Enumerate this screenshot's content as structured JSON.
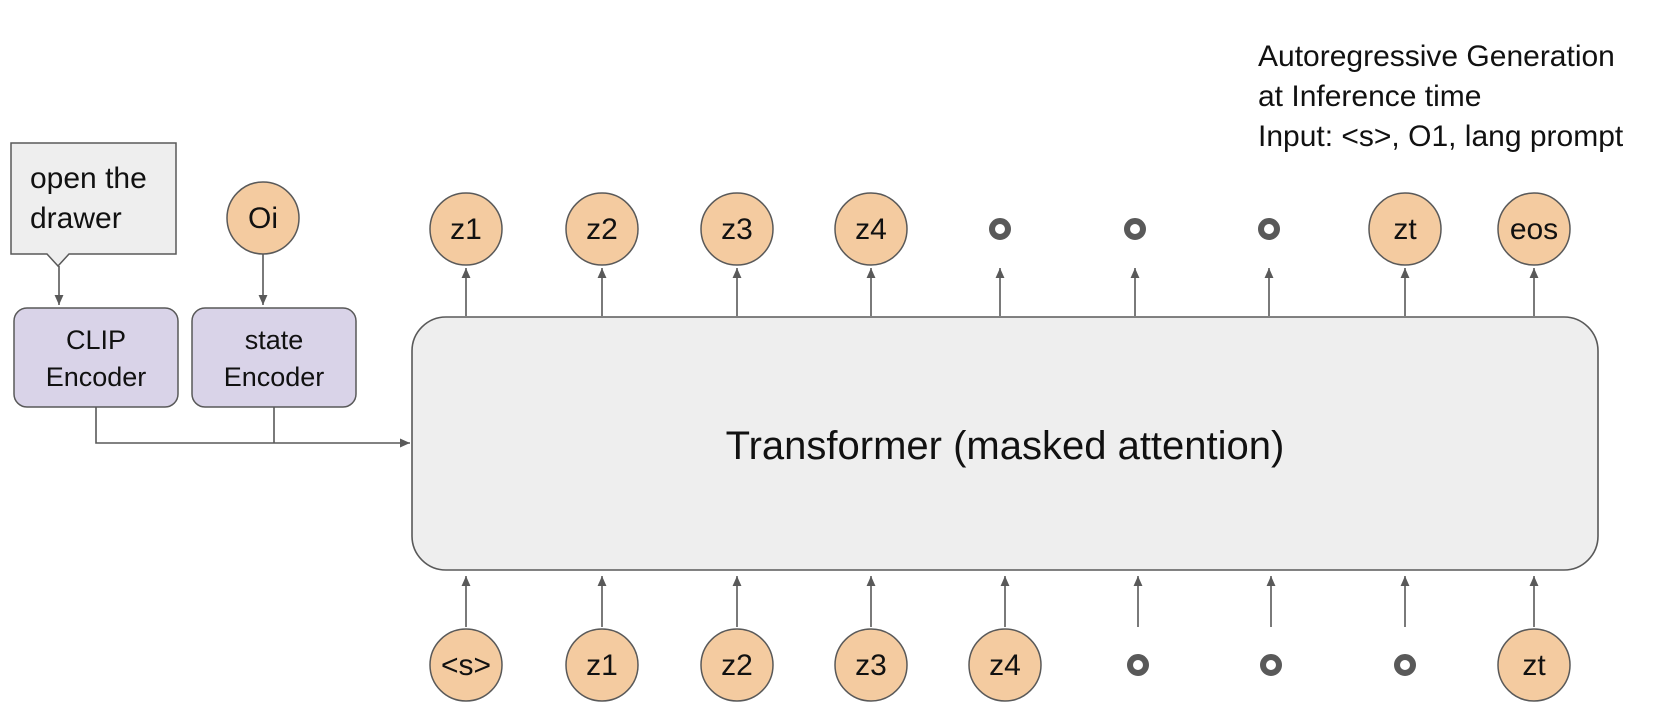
{
  "caption": {
    "lines": [
      "Autoregressive Generation",
      "at Inference time",
      "Input: <s>, O1, lang prompt"
    ]
  },
  "callout": {
    "lines": [
      "open the",
      "drawer"
    ]
  },
  "state_token": "Oi",
  "encoders": {
    "clip": [
      "CLIP",
      "Encoder"
    ],
    "state": [
      "state",
      "Encoder"
    ]
  },
  "transformer_label": "Transformer (masked attention)",
  "output_tokens": [
    "z1",
    "z2",
    "z3",
    "z4",
    "",
    "",
    "",
    "zt",
    "eos"
  ],
  "input_tokens": [
    "<s>",
    "z1",
    "z2",
    "z3",
    "z4",
    "",
    "",
    "",
    "zt"
  ],
  "colors": {
    "token_fill": "#f4cba0",
    "encoder_fill": "#d9d3e8",
    "transformer_fill": "#eeeeee",
    "callout_fill": "#eeeeee",
    "stroke": "#595959"
  }
}
